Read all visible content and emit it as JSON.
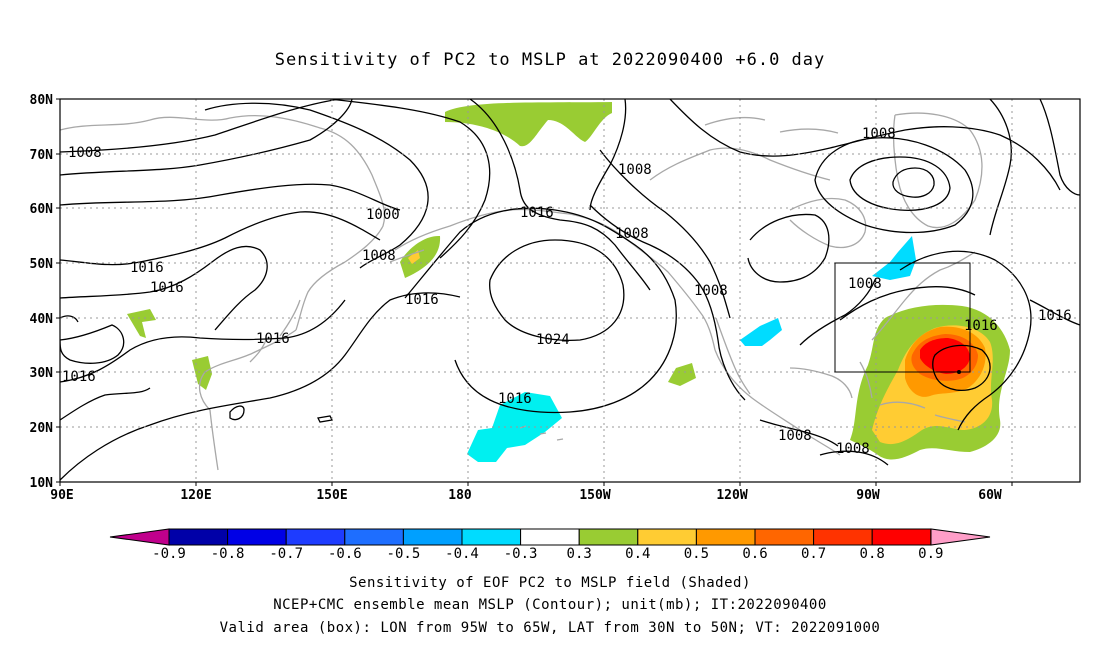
{
  "title": "Sensitivity of PC2 to MSLP at 2022090400 +6.0 day",
  "lat_labels": [
    "80N",
    "70N",
    "60N",
    "50N",
    "40N",
    "30N",
    "20N",
    "10N"
  ],
  "lon_labels": [
    "90E",
    "120E",
    "150E",
    "180",
    "150W",
    "120W",
    "90W",
    "60W"
  ],
  "contour_labels": [
    "1008",
    "1008",
    "1000",
    "1016",
    "1008",
    "1016",
    "1016",
    "1008",
    "1016",
    "1016",
    "1024",
    "1016",
    "1008",
    "1008",
    "1008",
    "1016",
    "1016",
    "1008",
    "1008",
    "1016"
  ],
  "colorbar": {
    "labels": [
      "-0.9",
      "-0.8",
      "-0.7",
      "-0.6",
      "-0.5",
      "-0.4",
      "-0.3",
      "0.3",
      "0.4",
      "0.5",
      "0.6",
      "0.7",
      "0.8",
      "0.9"
    ],
    "colors": [
      "#0000a8",
      "#0000e6",
      "#1e3cff",
      "#1e6eff",
      "#00a0ff",
      "#00dcff",
      "#ffffff",
      "#99cc33",
      "#ffcc33",
      "#ff9900",
      "#ff6600",
      "#ff3300",
      "#ff0000"
    ],
    "low_end_color": "#c0008c",
    "high_end_color": "#ff9ec8"
  },
  "captions": {
    "line1": "Sensitivity of EOF PC2 to MSLP field (Shaded)",
    "line2": "NCEP+CMC ensemble mean MSLP (Contour); unit(mb); IT:2022090400",
    "line3": "Valid area (box): LON from 95W to 65W, LAT from 30N to 50N; VT: 2022091000"
  }
}
